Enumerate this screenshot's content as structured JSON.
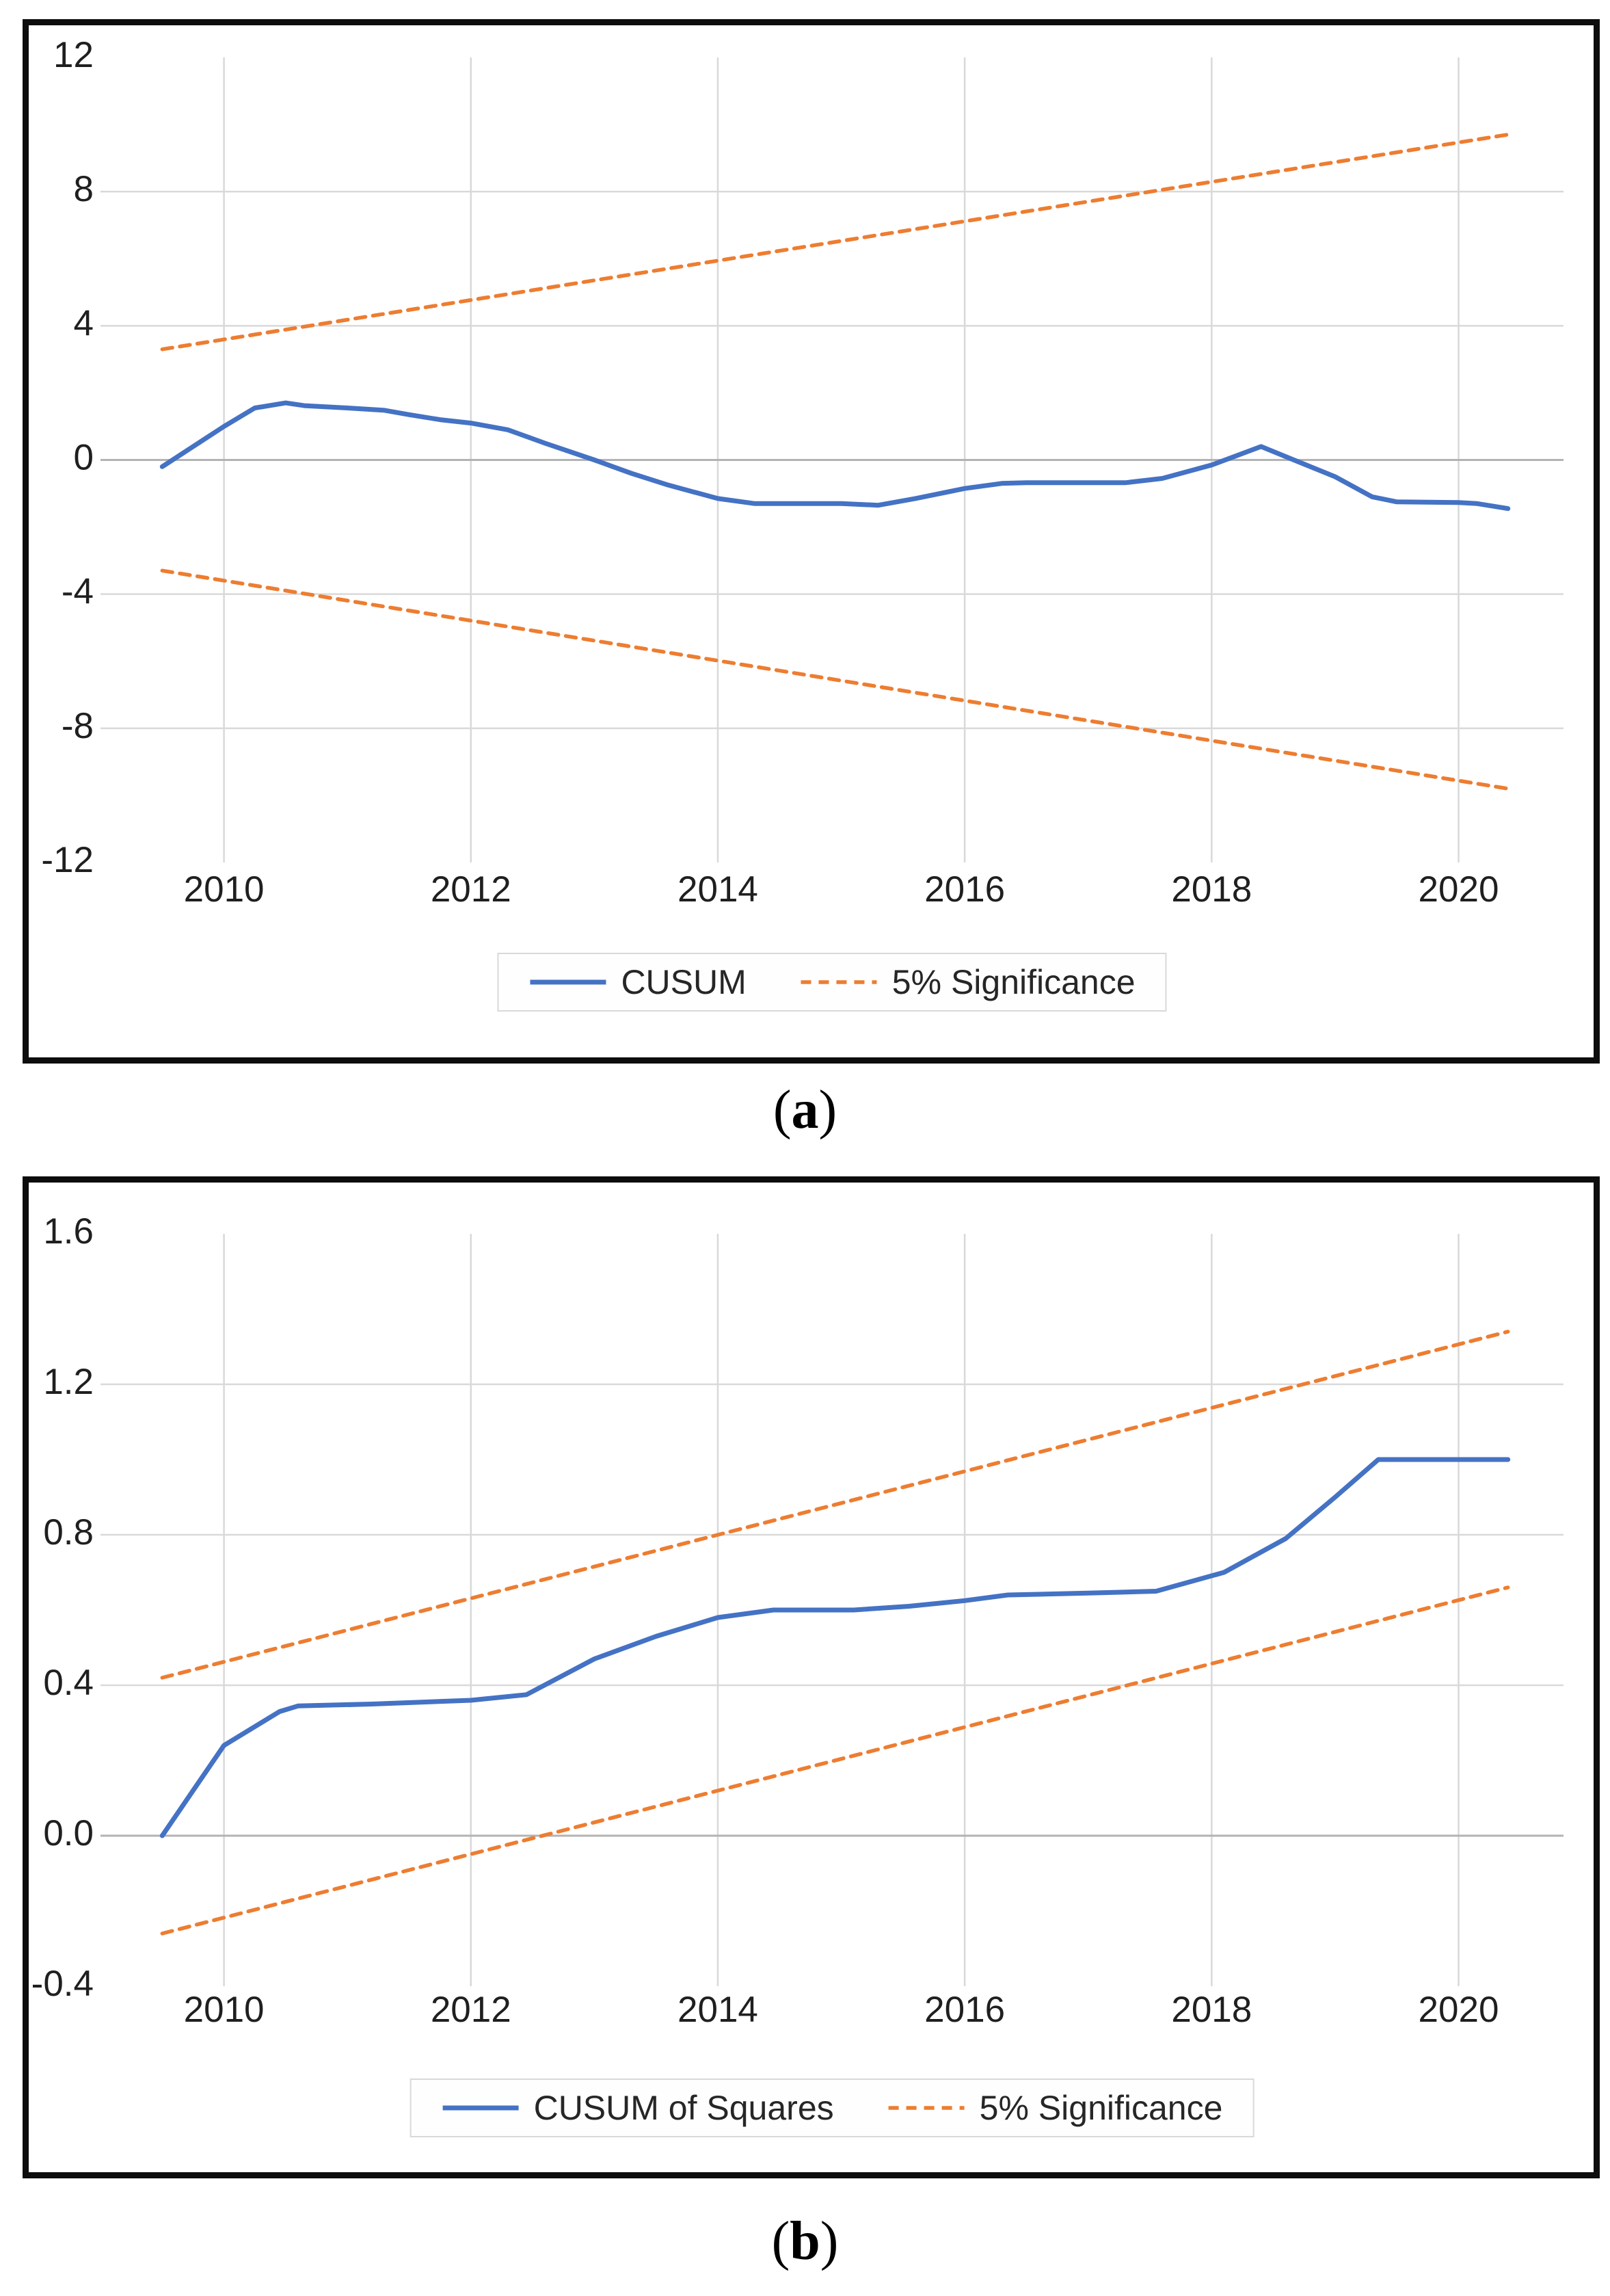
{
  "colors": {
    "cusum_blue": "#4472C4",
    "significance_orange": "#ED7D31",
    "gridline": "#d9d9d9",
    "zero_line": "#b3b3b3",
    "tick_text": "#1f1f1f",
    "panel_border": "#0d0d0d",
    "legend_border": "#d9d9d9"
  },
  "panels": [
    {
      "id": "a",
      "caption": {
        "open": "(",
        "letter": "a",
        "close": ")"
      },
      "legend_items": [
        {
          "label": "CUSUM",
          "line_style": "solid",
          "color": "#4472C4"
        },
        {
          "label": "5% Significance",
          "line_style": "dashed",
          "color": "#ED7D31"
        }
      ]
    },
    {
      "id": "b",
      "caption": {
        "open": "(",
        "letter": "b",
        "close": ")"
      },
      "legend_items": [
        {
          "label": "CUSUM of Squares",
          "line_style": "solid",
          "color": "#4472C4"
        },
        {
          "label": "5% Significance",
          "line_style": "dashed",
          "color": "#ED7D31"
        }
      ]
    }
  ],
  "chart_data": [
    {
      "panel": "a",
      "type": "line",
      "title": "",
      "xlabel": "",
      "ylabel": "",
      "grid": true,
      "legend_position": "bottom",
      "xlim": [
        2009.0,
        2020.85
      ],
      "ylim": [
        -12,
        12
      ],
      "x_tick_values": [
        2010,
        2012,
        2014,
        2016,
        2018,
        2020
      ],
      "x_tick_labels": [
        "2010",
        "2012",
        "2014",
        "2016",
        "2018",
        "2020"
      ],
      "y_tick_values": [
        12,
        8,
        4,
        0,
        -4,
        -8,
        -12
      ],
      "y_tick_labels": [
        "12",
        "8",
        "4",
        "0",
        "-4",
        "-8",
        "-12"
      ],
      "series": [
        {
          "name": "CUSUM",
          "style": "solid",
          "color": "#4472C4",
          "points": [
            [
              2009.5,
              -0.2
            ],
            [
              2009.75,
              0.4
            ],
            [
              2010.0,
              1.0
            ],
            [
              2010.25,
              1.55
            ],
            [
              2010.5,
              1.7
            ],
            [
              2010.65,
              1.62
            ],
            [
              2011.0,
              1.55
            ],
            [
              2011.3,
              1.48
            ],
            [
              2011.5,
              1.35
            ],
            [
              2011.75,
              1.2
            ],
            [
              2012.0,
              1.1
            ],
            [
              2012.3,
              0.9
            ],
            [
              2012.6,
              0.5
            ],
            [
              2013.0,
              0.0
            ],
            [
              2013.3,
              -0.4
            ],
            [
              2013.6,
              -0.75
            ],
            [
              2014.0,
              -1.15
            ],
            [
              2014.3,
              -1.3
            ],
            [
              2015.0,
              -1.3
            ],
            [
              2015.3,
              -1.35
            ],
            [
              2015.6,
              -1.15
            ],
            [
              2016.0,
              -0.85
            ],
            [
              2016.3,
              -0.7
            ],
            [
              2016.5,
              -0.68
            ],
            [
              2017.3,
              -0.68
            ],
            [
              2017.6,
              -0.55
            ],
            [
              2018.0,
              -0.15
            ],
            [
              2018.4,
              0.4
            ],
            [
              2018.7,
              -0.05
            ],
            [
              2019.0,
              -0.5
            ],
            [
              2019.3,
              -1.1
            ],
            [
              2019.5,
              -1.25
            ],
            [
              2020.0,
              -1.27
            ],
            [
              2020.15,
              -1.3
            ],
            [
              2020.4,
              -1.45
            ]
          ]
        },
        {
          "name": "5% Significance (upper)",
          "style": "dashed",
          "color": "#ED7D31",
          "points": [
            [
              2009.5,
              3.3
            ],
            [
              2020.4,
              9.7
            ]
          ]
        },
        {
          "name": "5% Significance (lower)",
          "style": "dashed",
          "color": "#ED7D31",
          "points": [
            [
              2009.5,
              -3.3
            ],
            [
              2020.4,
              -9.8
            ]
          ]
        }
      ]
    },
    {
      "panel": "b",
      "type": "line",
      "title": "",
      "xlabel": "",
      "ylabel": "",
      "grid": true,
      "legend_position": "bottom",
      "xlim": [
        2009.0,
        2020.85
      ],
      "ylim": [
        -0.4,
        1.6
      ],
      "x_tick_values": [
        2010,
        2012,
        2014,
        2016,
        2018,
        2020
      ],
      "x_tick_labels": [
        "2010",
        "2012",
        "2014",
        "2016",
        "2018",
        "2020"
      ],
      "y_tick_values": [
        1.6,
        1.2,
        0.8,
        0.4,
        0.0,
        -0.4
      ],
      "y_tick_labels": [
        "1.6",
        "1.2",
        "0.8",
        "0.4",
        "0.0",
        "-0.4"
      ],
      "series": [
        {
          "name": "CUSUM of Squares",
          "style": "solid",
          "color": "#4472C4",
          "points": [
            [
              2009.5,
              0.0
            ],
            [
              2009.75,
              0.12
            ],
            [
              2010.0,
              0.24
            ],
            [
              2010.45,
              0.33
            ],
            [
              2010.6,
              0.345
            ],
            [
              2011.2,
              0.35
            ],
            [
              2012.0,
              0.36
            ],
            [
              2012.45,
              0.375
            ],
            [
              2013.0,
              0.47
            ],
            [
              2013.5,
              0.53
            ],
            [
              2014.0,
              0.58
            ],
            [
              2014.45,
              0.6
            ],
            [
              2015.1,
              0.6
            ],
            [
              2015.55,
              0.61
            ],
            [
              2016.0,
              0.625
            ],
            [
              2016.35,
              0.64
            ],
            [
              2017.0,
              0.645
            ],
            [
              2017.55,
              0.65
            ],
            [
              2018.1,
              0.7
            ],
            [
              2018.6,
              0.79
            ],
            [
              2019.0,
              0.9
            ],
            [
              2019.35,
              1.0
            ],
            [
              2020.4,
              1.0
            ]
          ]
        },
        {
          "name": "5% Significance (upper)",
          "style": "dashed",
          "color": "#ED7D31",
          "points": [
            [
              2009.5,
              0.42
            ],
            [
              2020.4,
              1.34
            ]
          ]
        },
        {
          "name": "5% Significance (lower)",
          "style": "dashed",
          "color": "#ED7D31",
          "points": [
            [
              2009.5,
              -0.26
            ],
            [
              2020.4,
              0.66
            ]
          ]
        }
      ]
    }
  ]
}
